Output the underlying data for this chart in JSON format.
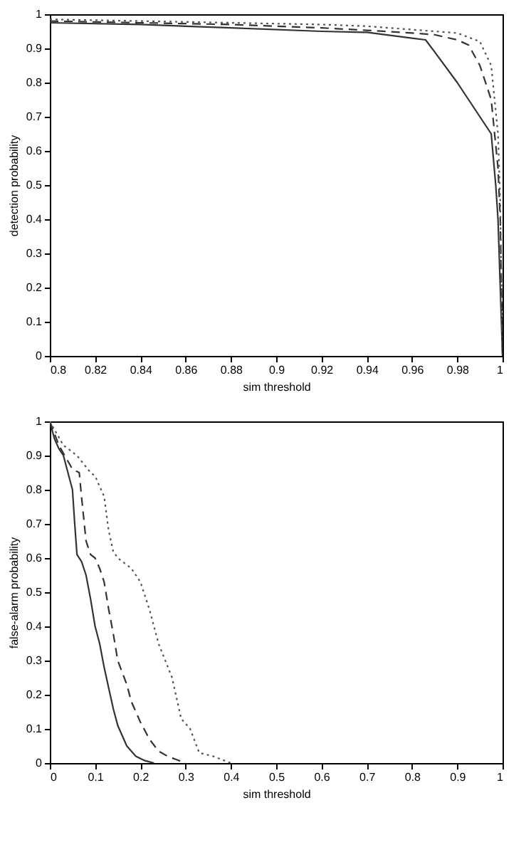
{
  "chart_data": [
    {
      "type": "line",
      "xlabel": "sim threshold",
      "ylabel": "detection probability",
      "xlim": [
        0.8,
        1
      ],
      "ylim": [
        0,
        1
      ],
      "xticks": [
        0.8,
        0.82,
        0.84,
        0.86,
        0.88,
        0.9,
        0.92,
        0.94,
        0.96,
        0.98,
        1
      ],
      "yticks": [
        0,
        0.1,
        0.2,
        0.3,
        0.4,
        0.5,
        0.6,
        0.7,
        0.8,
        0.9,
        1
      ],
      "grid": false,
      "series": [
        {
          "color": "#333333",
          "line_style": "solid",
          "x": [
            0.8,
            0.84,
            0.88,
            0.92,
            0.94,
            0.96,
            0.966,
            0.97,
            0.98,
            0.99,
            0.995,
            0.997,
            0.998,
            1.0
          ],
          "values": [
            0.975,
            0.97,
            0.96,
            0.95,
            0.947,
            0.93,
            0.925,
            0.89,
            0.8,
            0.7,
            0.65,
            0.5,
            0.4,
            0
          ]
        },
        {
          "color": "#333333",
          "line_style": "dashed",
          "x": [
            0.8,
            0.84,
            0.88,
            0.92,
            0.94,
            0.96,
            0.97,
            0.98,
            0.985,
            0.99,
            0.995,
            0.998,
            0.999,
            1.0
          ],
          "values": [
            0.98,
            0.975,
            0.97,
            0.96,
            0.953,
            0.945,
            0.94,
            0.925,
            0.91,
            0.85,
            0.75,
            0.55,
            0.4,
            0
          ]
        },
        {
          "color": "#555555",
          "line_style": "dotted",
          "x": [
            0.8,
            0.84,
            0.88,
            0.92,
            0.94,
            0.96,
            0.98,
            0.99,
            0.995,
            0.998,
            0.999,
            1.0
          ],
          "values": [
            0.985,
            0.98,
            0.975,
            0.97,
            0.965,
            0.955,
            0.945,
            0.92,
            0.85,
            0.65,
            0.45,
            0
          ]
        }
      ]
    },
    {
      "type": "line",
      "xlabel": "sim threshold",
      "ylabel": "false-alarm probability",
      "xlim": [
        0,
        1
      ],
      "ylim": [
        0,
        1
      ],
      "xticks": [
        0,
        0.1,
        0.2,
        0.3,
        0.4,
        0.5,
        0.6,
        0.7,
        0.8,
        0.9,
        1
      ],
      "yticks": [
        0,
        0.1,
        0.2,
        0.3,
        0.4,
        0.5,
        0.6,
        0.7,
        0.8,
        0.9,
        1
      ],
      "grid": false,
      "series": [
        {
          "color": "#333333",
          "line_style": "solid",
          "x": [
            0,
            0.01,
            0.02,
            0.03,
            0.04,
            0.05,
            0.055,
            0.06,
            0.07,
            0.08,
            0.09,
            0.1,
            0.11,
            0.12,
            0.13,
            0.14,
            0.15,
            0.17,
            0.19,
            0.21,
            0.23
          ],
          "values": [
            1,
            0.95,
            0.92,
            0.9,
            0.85,
            0.8,
            0.7,
            0.61,
            0.59,
            0.55,
            0.48,
            0.4,
            0.35,
            0.28,
            0.22,
            0.16,
            0.11,
            0.05,
            0.02,
            0.007,
            0
          ]
        },
        {
          "color": "#333333",
          "line_style": "dashed",
          "x": [
            0,
            0.02,
            0.05,
            0.065,
            0.07,
            0.08,
            0.09,
            0.1,
            0.11,
            0.12,
            0.13,
            0.14,
            0.15,
            0.17,
            0.18,
            0.2,
            0.22,
            0.24,
            0.26,
            0.28,
            0.3
          ],
          "values": [
            1,
            0.93,
            0.86,
            0.85,
            0.78,
            0.65,
            0.61,
            0.6,
            0.57,
            0.53,
            0.45,
            0.38,
            0.3,
            0.23,
            0.18,
            0.12,
            0.07,
            0.035,
            0.02,
            0.01,
            0
          ]
        },
        {
          "color": "#555555",
          "line_style": "dotted",
          "x": [
            0,
            0.03,
            0.06,
            0.09,
            0.1,
            0.12,
            0.13,
            0.14,
            0.15,
            0.18,
            0.2,
            0.22,
            0.24,
            0.27,
            0.29,
            0.31,
            0.33,
            0.36,
            0.4
          ],
          "values": [
            1,
            0.93,
            0.9,
            0.85,
            0.84,
            0.78,
            0.68,
            0.62,
            0.6,
            0.57,
            0.53,
            0.45,
            0.35,
            0.25,
            0.13,
            0.1,
            0.03,
            0.02,
            0
          ]
        }
      ]
    }
  ]
}
